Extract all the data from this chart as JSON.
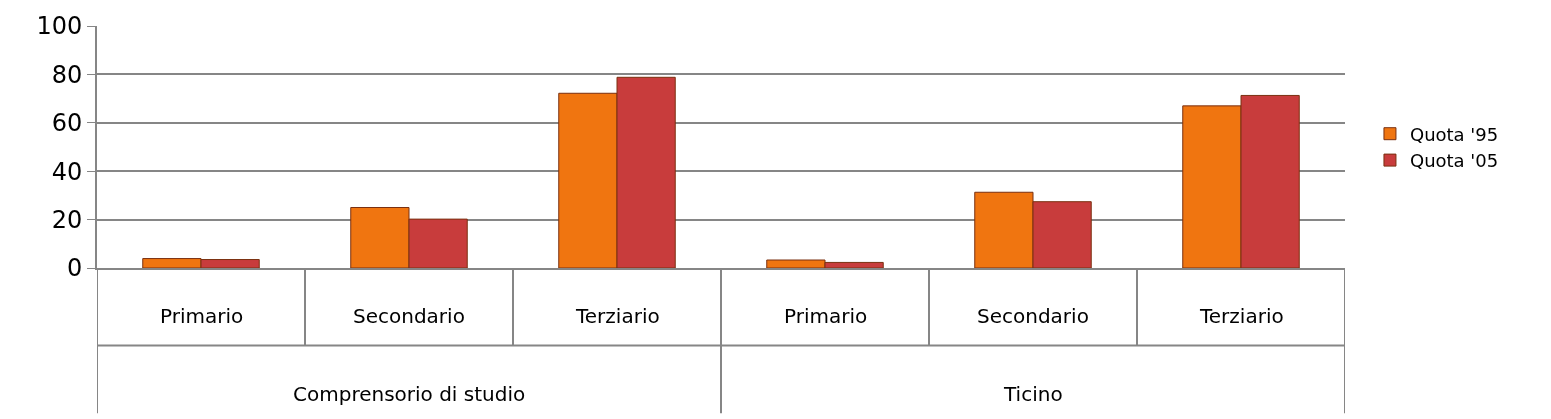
{
  "chart_data": {
    "type": "bar",
    "categories": [
      "Primario",
      "Secondario",
      "Terziario",
      "Primario",
      "Secondario",
      "Terziario"
    ],
    "annotations": [
      "Comprensorio di studio",
      "Ticino"
    ],
    "series": [
      {
        "name": "Quota '95",
        "color": "#f07510",
        "values": [
          3.9,
          25,
          72.2,
          3.3,
          31.3,
          67
        ]
      },
      {
        "name": "Quota '05",
        "color": "#c83c3c",
        "values": [
          3.5,
          20.2,
          78.8,
          2.3,
          27.4,
          71.3
        ]
      }
    ],
    "ylim": [
      0,
      100
    ],
    "yticks": [
      0,
      20,
      40,
      60,
      80,
      100
    ],
    "grid": "y",
    "legend": "right"
  }
}
